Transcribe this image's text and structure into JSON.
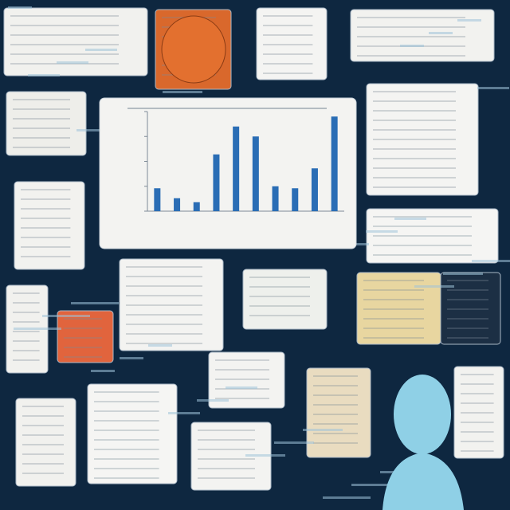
{
  "chart_data": {
    "type": "bar",
    "values": [
      23,
      13,
      9,
      57,
      85,
      75,
      25,
      23,
      43,
      95
    ],
    "color": "#2a6db5",
    "ylim": [
      0,
      100
    ],
    "yticks": [
      0,
      25,
      50,
      75,
      100
    ],
    "grid": false
  }
}
